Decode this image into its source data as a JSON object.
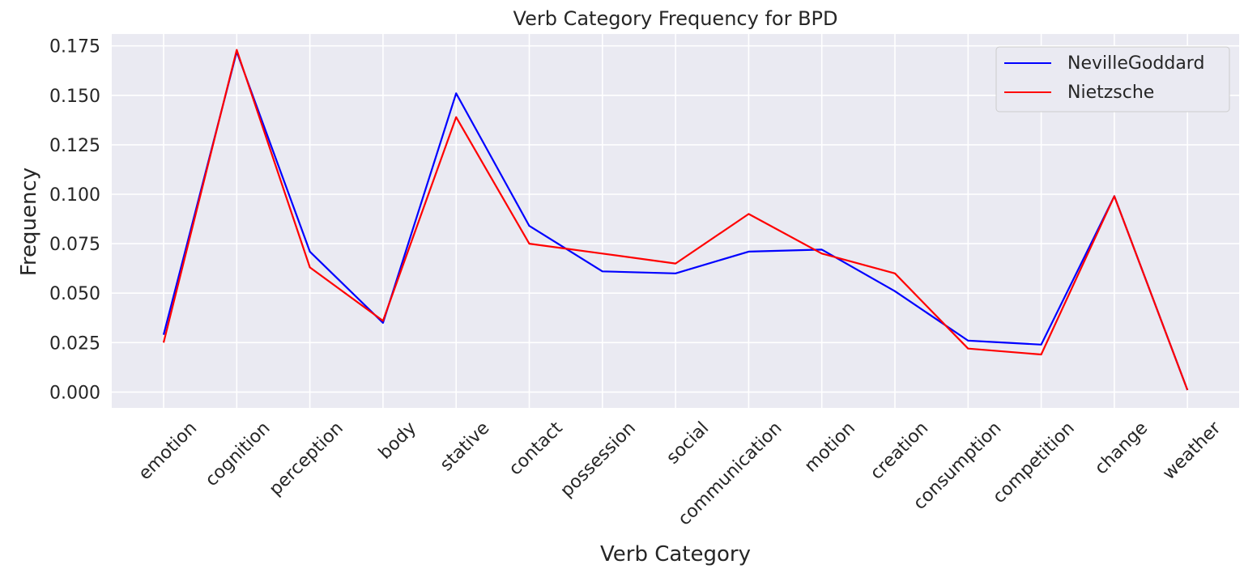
{
  "chart_data": {
    "type": "line",
    "title": "Verb Category Frequency for BPD",
    "xlabel": "Verb Category",
    "ylabel": "Frequency",
    "categories": [
      "emotion",
      "cognition",
      "perception",
      "body",
      "stative",
      "contact",
      "possession",
      "social",
      "communication",
      "motion",
      "creation",
      "consumption",
      "competition",
      "change",
      "weather"
    ],
    "yticks": [
      "0.000",
      "0.025",
      "0.050",
      "0.075",
      "0.100",
      "0.125",
      "0.150",
      "0.175"
    ],
    "ylim": [
      -0.008,
      0.181
    ],
    "grid": true,
    "legend_position": "top-right",
    "series": [
      {
        "name": "NevilleGoddard",
        "color": "#0000ff",
        "values": [
          0.029,
          0.172,
          0.071,
          0.035,
          0.151,
          0.084,
          0.061,
          0.06,
          0.071,
          0.072,
          0.051,
          0.026,
          0.024,
          0.099,
          0.001
        ]
      },
      {
        "name": "Nietzsche",
        "color": "#ff0000",
        "values": [
          0.025,
          0.173,
          0.063,
          0.036,
          0.139,
          0.075,
          0.07,
          0.065,
          0.09,
          0.07,
          0.06,
          0.022,
          0.019,
          0.099,
          0.001
        ]
      }
    ]
  }
}
